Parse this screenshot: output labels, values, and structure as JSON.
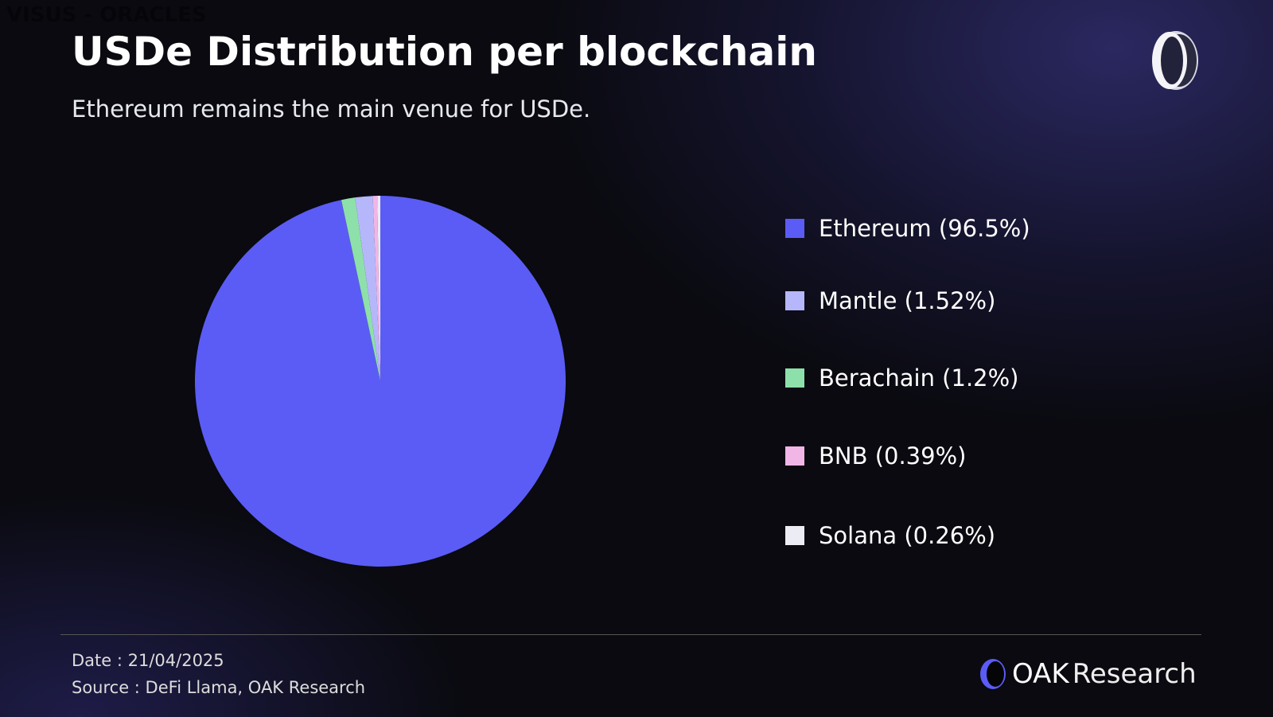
{
  "watermark": "VISUS - ORACLES",
  "title": "USDe Distribution per blockchain",
  "subtitle": "Ethereum remains the main venue for USDe.",
  "chart_data": {
    "type": "pie",
    "title": "USDe Distribution per blockchain",
    "slices": [
      {
        "label": "Ethereum (96.5%)",
        "name": "Ethereum",
        "value": 96.5,
        "color": "#5b5cf5"
      },
      {
        "label": "Mantle (1.52%)",
        "name": "Mantle",
        "value": 1.52,
        "color": "#b6b7fa"
      },
      {
        "label": "Berachain (1.2%)",
        "name": "Berachain",
        "value": 1.2,
        "color": "#8ee0aa"
      },
      {
        "label": "BNB (0.39%)",
        "name": "BNB",
        "value": 0.39,
        "color": "#f1b5e6"
      },
      {
        "label": "Solana (0.26%)",
        "name": "Solana",
        "value": 0.26,
        "color": "#ececf4"
      }
    ],
    "clockwise_order": [
      "Ethereum",
      "Berachain",
      "Mantle",
      "BNB",
      "Solana"
    ],
    "start_angle": "top",
    "legend": "right"
  },
  "footer": {
    "date": "Date : 21/04/2025",
    "source": "Source : DeFi Llama, OAK Research"
  },
  "brand": {
    "bold": "OAK",
    "light": "Research",
    "accent": "#5b5cf5"
  }
}
